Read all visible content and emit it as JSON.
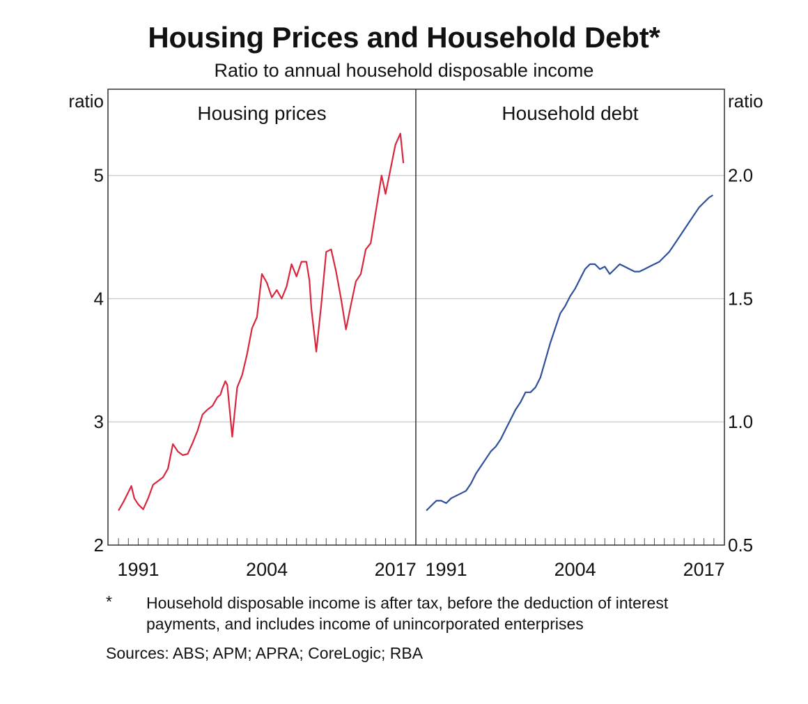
{
  "title": "Housing Prices and Household Debt*",
  "subtitle": "Ratio to annual household disposable income",
  "footnote": {
    "marker": "*",
    "text": "Household disposable income is after tax, before the deduction of interest payments, and includes income of unincorporated enterprises"
  },
  "sources": "Sources: ABS; APM; APRA; CoreLogic; RBA",
  "colors": {
    "housing": "#d7263d",
    "debt": "#2f4f9a",
    "grid": "#c8c8c8",
    "frame": "#222222"
  },
  "chart_data": [
    {
      "type": "line",
      "panel_title": "Housing prices",
      "ylabel": "ratio",
      "ylim": [
        2,
        5.7
      ],
      "yticks": [
        2,
        3,
        4,
        5
      ],
      "ytick_labels": [
        "2",
        "3",
        "4",
        "5"
      ],
      "xlim": [
        1988.5,
        2018.5
      ],
      "xtick_labels": [
        "1991",
        "2004",
        "2017"
      ],
      "xticks": [
        1991,
        2004,
        2017
      ],
      "grid": true,
      "series": [
        {
          "x": [
            1989.0,
            1989.5,
            1990.0,
            1990.3,
            1990.6,
            1991.0,
            1991.5,
            1992.0,
            1992.5,
            1993.0,
            1993.5,
            1994.0,
            1994.5,
            1995.0,
            1995.5,
            1996.0,
            1996.5,
            1997.0,
            1997.5,
            1998.0,
            1998.5,
            1999.0,
            1999.3,
            1999.5,
            1999.8,
            2000.0,
            2000.5,
            2001.0,
            2001.5,
            2002.0,
            2002.5,
            2003.0,
            2003.5,
            2004.0,
            2004.5,
            2005.0,
            2005.5,
            2006.0,
            2006.5,
            2007.0,
            2007.5,
            2008.0,
            2008.3,
            2008.5,
            2009.0,
            2009.5,
            2010.0,
            2010.5,
            2011.0,
            2011.5,
            2012.0,
            2012.5,
            2013.0,
            2013.5,
            2014.0,
            2014.5,
            2015.0,
            2015.3,
            2015.6,
            2016.0,
            2016.5,
            2017.0,
            2017.5,
            2017.8
          ],
          "y": [
            2.28,
            2.35,
            2.43,
            2.48,
            2.38,
            2.33,
            2.29,
            2.38,
            2.49,
            2.52,
            2.55,
            2.62,
            2.82,
            2.76,
            2.73,
            2.74,
            2.83,
            2.93,
            3.06,
            3.1,
            3.13,
            3.2,
            3.22,
            3.27,
            3.33,
            3.3,
            2.88,
            3.28,
            3.38,
            3.55,
            3.76,
            3.85,
            4.2,
            4.13,
            4.01,
            4.07,
            4.0,
            4.1,
            4.28,
            4.18,
            4.3,
            4.3,
            4.15,
            3.92,
            3.57,
            3.95,
            4.38,
            4.4,
            4.22,
            4.0,
            3.75,
            3.95,
            4.14,
            4.2,
            4.4,
            4.45,
            4.7,
            4.85,
            5.0,
            4.85,
            5.05,
            5.25,
            5.34,
            5.1
          ]
        }
      ]
    },
    {
      "type": "line",
      "panel_title": "Household debt",
      "ylabel": "ratio",
      "ylim": [
        0.5,
        2.35
      ],
      "yticks": [
        0.5,
        1.0,
        1.5,
        2.0
      ],
      "ytick_labels": [
        "0.5",
        "1.0",
        "1.5",
        "2.0"
      ],
      "xlim": [
        1988.5,
        2018.5
      ],
      "xtick_labels": [
        "1991",
        "2004",
        "2017"
      ],
      "xticks": [
        1991,
        2004,
        2017
      ],
      "grid": true,
      "series": [
        {
          "x": [
            1989.0,
            1989.5,
            1990.0,
            1990.5,
            1991.0,
            1991.5,
            1992.0,
            1992.5,
            1993.0,
            1993.5,
            1994.0,
            1994.5,
            1995.0,
            1995.5,
            1996.0,
            1996.5,
            1997.0,
            1997.5,
            1998.0,
            1998.5,
            1999.0,
            1999.5,
            2000.0,
            2000.5,
            2001.0,
            2001.5,
            2002.0,
            2002.5,
            2003.0,
            2003.5,
            2004.0,
            2004.5,
            2005.0,
            2005.5,
            2006.0,
            2006.5,
            2007.0,
            2007.5,
            2008.0,
            2008.5,
            2009.0,
            2009.5,
            2010.0,
            2010.5,
            2011.0,
            2011.5,
            2012.0,
            2012.5,
            2013.0,
            2013.5,
            2014.0,
            2014.5,
            2015.0,
            2015.5,
            2016.0,
            2016.5,
            2017.0,
            2017.5,
            2017.9
          ],
          "y": [
            0.64,
            0.66,
            0.68,
            0.68,
            0.67,
            0.69,
            0.7,
            0.71,
            0.72,
            0.75,
            0.79,
            0.82,
            0.85,
            0.88,
            0.9,
            0.93,
            0.97,
            1.01,
            1.05,
            1.08,
            1.12,
            1.12,
            1.14,
            1.18,
            1.25,
            1.32,
            1.38,
            1.44,
            1.47,
            1.51,
            1.54,
            1.58,
            1.62,
            1.64,
            1.64,
            1.62,
            1.63,
            1.6,
            1.62,
            1.64,
            1.63,
            1.62,
            1.61,
            1.61,
            1.62,
            1.63,
            1.64,
            1.65,
            1.67,
            1.69,
            1.72,
            1.75,
            1.78,
            1.81,
            1.84,
            1.87,
            1.89,
            1.91,
            1.92
          ]
        }
      ]
    }
  ]
}
